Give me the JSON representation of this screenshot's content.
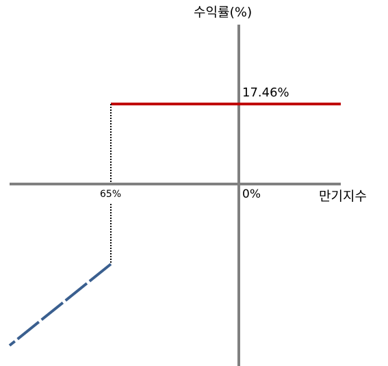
{
  "labels": {
    "y_axis_title": "수익률(%)",
    "x_axis_title": "만기지수",
    "payoff_level": "17.46%",
    "origin": "0%",
    "barrier": "65%"
  },
  "colors": {
    "axis": "#808080",
    "payoff_line": "#C00000",
    "loss_line": "#3A5F8F",
    "dotted_drop": "#000000"
  }
}
